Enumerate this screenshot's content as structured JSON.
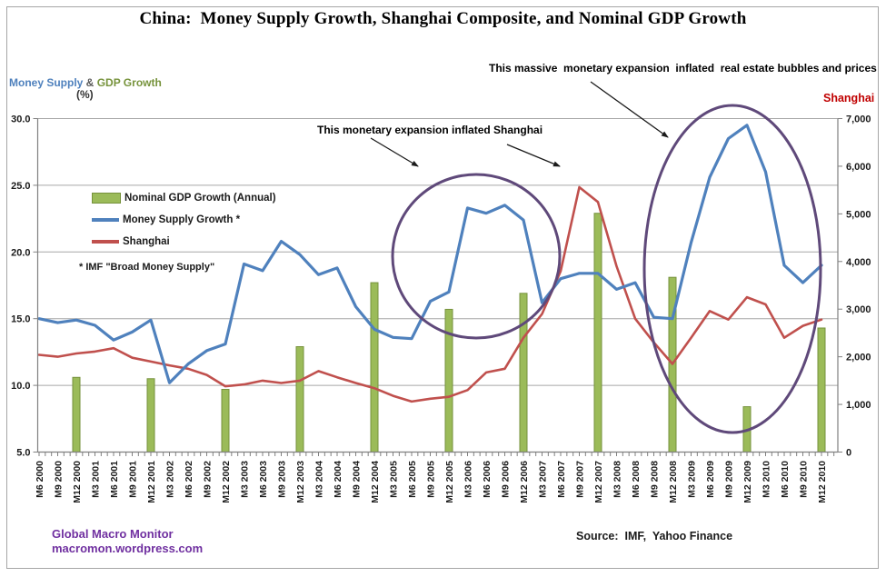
{
  "title": "China:  Money Supply Growth, Shanghai Composite, and Nominal GDP Growth",
  "axis_titles": {
    "left_part1": "Money Supply",
    "left_amp": " & ",
    "left_part2": "GDP Growth",
    "left_unit": "(%)",
    "right": "Shanghai"
  },
  "legend": {
    "items": [
      {
        "label": "Nominal GDP Growth (Annual)"
      },
      {
        "label": "Money Supply Growth *"
      },
      {
        "label": "Shanghai"
      }
    ],
    "footnote": "* IMF \"Broad Money Supply\""
  },
  "annotations": {
    "real_estate": "This massive  monetary expansion  inflated  real estate bubbles and prices",
    "shanghai": "This monetary expansion inflated Shanghai"
  },
  "source": "Source:  IMF,  Yahoo Finance",
  "branding": {
    "line1": "Global Macro Monitor",
    "line2": "macromon.wordpress.com"
  },
  "colors": {
    "money_supply_blue": "#4F81BD",
    "shanghai_red": "#C0504D",
    "gdp_green": "#9BBB59",
    "gdp_green_border": "#76923C",
    "ellipse_purple": "#5F497A",
    "branding_purple": "#7030A0",
    "shanghai_label_red": "#C00000",
    "gridline_gray": "#A6A6A6"
  },
  "chart_data": {
    "type": "line",
    "title": "China:  Money Supply Growth, Shanghai Composite, and Nominal GDP Growth",
    "grid": "horizontal",
    "legend_position": "inside-left",
    "minor_x_ticks": "monthly",
    "x_labels": [
      "M6 2000",
      "M9 2000",
      "M12 2000",
      "M3 2001",
      "M6 2001",
      "M9 2001",
      "M12 2001",
      "M3 2002",
      "M6 2002",
      "M9 2002",
      "M12 2002",
      "M3 2003",
      "M6 2003",
      "M9 2003",
      "M12 2003",
      "M3 2004",
      "M6 2004",
      "M9 2004",
      "M12 2004",
      "M3 2005",
      "M6 2005",
      "M9 2005",
      "M12 2005",
      "M3 2006",
      "M6 2006",
      "M9 2006",
      "M12 2006",
      "M3 2007",
      "M6 2007",
      "M9 2007",
      "M12 2007",
      "M3 2008",
      "M6 2008",
      "M9 2008",
      "M12 2008",
      "M3 2009",
      "M6 2009",
      "M9 2009",
      "M12 2009",
      "M3 2010",
      "M6 2010",
      "M9 2010",
      "M12 2010"
    ],
    "left_axis": {
      "title": "Money Supply & GDP Growth (%)",
      "min": 5,
      "max": 30,
      "step": 5
    },
    "right_axis": {
      "title": "Shanghai",
      "min": 0,
      "max": 7000,
      "step": 1000
    },
    "series": [
      {
        "name": "Nominal GDP Growth (Annual)",
        "type": "bar",
        "axis": "left",
        "color": "#9BBB59",
        "border_color": "#76923C",
        "x": [
          "M12 2000",
          "M12 2001",
          "M12 2002",
          "M12 2003",
          "M12 2004",
          "M12 2005",
          "M12 2006",
          "M12 2007",
          "M12 2008",
          "M12 2009",
          "M12 2010"
        ],
        "values": [
          10.6,
          10.5,
          9.7,
          12.9,
          17.7,
          15.7,
          16.9,
          22.9,
          18.1,
          8.4,
          14.3
        ]
      },
      {
        "name": "Shanghai",
        "type": "line",
        "axis": "right",
        "color": "#C0504D",
        "values": [
          2040,
          2000,
          2070,
          2110,
          2180,
          1980,
          1900,
          1820,
          1750,
          1620,
          1380,
          1420,
          1500,
          1450,
          1500,
          1700,
          1570,
          1450,
          1340,
          1180,
          1060,
          1120,
          1160,
          1300,
          1670,
          1750,
          2400,
          2900,
          3800,
          5560,
          5250,
          3900,
          2800,
          2300,
          1850,
          2400,
          2960,
          2780,
          3250,
          3100,
          2400,
          2650,
          2780
        ]
      },
      {
        "name": "Money Supply Growth *",
        "type": "line",
        "axis": "left",
        "color": "#4F81BD",
        "values": [
          15.0,
          14.7,
          14.9,
          14.5,
          13.4,
          14.0,
          14.9,
          10.2,
          11.6,
          12.6,
          13.1,
          19.1,
          18.6,
          20.8,
          19.8,
          18.3,
          18.8,
          15.9,
          14.2,
          13.6,
          13.5,
          16.3,
          17.0,
          23.3,
          22.9,
          23.5,
          22.4,
          16.2,
          18.0,
          18.4,
          18.4,
          17.2,
          17.7,
          15.1,
          15.0,
          20.7,
          25.6,
          28.5,
          29.5,
          26.0,
          19.0,
          17.7,
          19.0
        ]
      }
    ]
  }
}
